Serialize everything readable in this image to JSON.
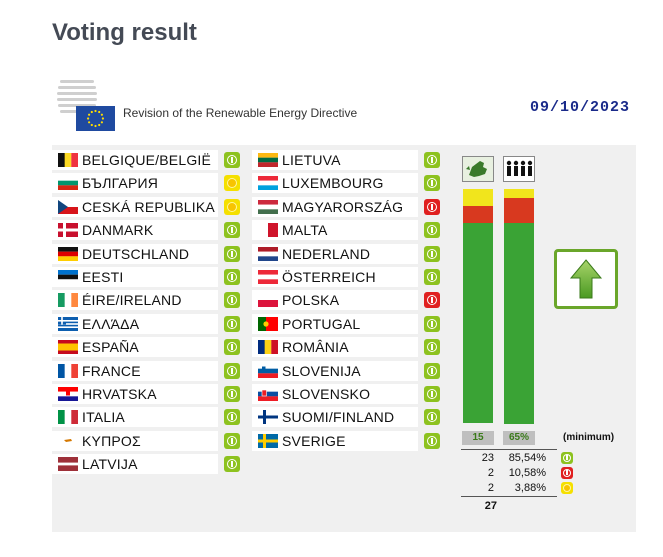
{
  "page": {
    "title": "Voting result"
  },
  "header": {
    "description": "Revision of the Renewable Energy Directive",
    "date": "09/10/2023"
  },
  "countries_left": [
    {
      "name": "BELGIQUE/BELGIË",
      "vote": "yes",
      "flag": "be"
    },
    {
      "name": "БЪЛГАРИЯ",
      "vote": "abs",
      "flag": "bg"
    },
    {
      "name": "CESKÁ REPUBLIKA",
      "vote": "abs",
      "flag": "cz"
    },
    {
      "name": "DANMARK",
      "vote": "yes",
      "flag": "dk"
    },
    {
      "name": "DEUTSCHLAND",
      "vote": "yes",
      "flag": "de"
    },
    {
      "name": "EESTI",
      "vote": "yes",
      "flag": "ee"
    },
    {
      "name": "ÉIRE/IRELAND",
      "vote": "yes",
      "flag": "ie"
    },
    {
      "name": "ΕΛΛΆΔΑ",
      "vote": "yes",
      "flag": "gr"
    },
    {
      "name": "ESPAÑA",
      "vote": "yes",
      "flag": "es"
    },
    {
      "name": "FRANCE",
      "vote": "yes",
      "flag": "fr"
    },
    {
      "name": "HRVATSKA",
      "vote": "yes",
      "flag": "hr"
    },
    {
      "name": "ITALIA",
      "vote": "yes",
      "flag": "it"
    },
    {
      "name": "ΚΥΠΡΟΣ",
      "vote": "yes",
      "flag": "cy"
    },
    {
      "name": "LATVIJA",
      "vote": "yes",
      "flag": "lv"
    }
  ],
  "countries_right": [
    {
      "name": "LIETUVA",
      "vote": "yes",
      "flag": "lt"
    },
    {
      "name": "LUXEMBOURG",
      "vote": "yes",
      "flag": "lu"
    },
    {
      "name": "MAGYARORSZÁG",
      "vote": "no",
      "flag": "hu"
    },
    {
      "name": "MALTA",
      "vote": "yes",
      "flag": "mt"
    },
    {
      "name": "NEDERLAND",
      "vote": "yes",
      "flag": "nl"
    },
    {
      "name": "ÖSTERREICH",
      "vote": "yes",
      "flag": "at"
    },
    {
      "name": "POLSKA",
      "vote": "no",
      "flag": "pl"
    },
    {
      "name": "PORTUGAL",
      "vote": "yes",
      "flag": "pt"
    },
    {
      "name": "ROMÂNIA",
      "vote": "yes",
      "flag": "ro"
    },
    {
      "name": "SLOVENIJA",
      "vote": "yes",
      "flag": "si"
    },
    {
      "name": "SLOVENSKO",
      "vote": "yes",
      "flag": "sk"
    },
    {
      "name": "SUOMI/FINLAND",
      "vote": "yes",
      "flag": "fi"
    },
    {
      "name": "SVERIGE",
      "vote": "yes",
      "flag": "se"
    }
  ],
  "thresholds": {
    "states_min": "15",
    "population_min": "65%",
    "minimum_label": "(minimum)"
  },
  "bars": {
    "states": {
      "yes_share": 0.852,
      "no_share": 0.074,
      "abs_share": 0.074
    },
    "population": {
      "yes_share": 0.8554,
      "no_share": 0.1058,
      "abs_share": 0.0388
    }
  },
  "tally": [
    {
      "count": "23",
      "pct": "85,54%",
      "vote": "yes"
    },
    {
      "count": "2",
      "pct": "10,58%",
      "vote": "no"
    },
    {
      "count": "2",
      "pct": "3,88%",
      "vote": "abs"
    }
  ],
  "total": "27",
  "colors": {
    "yes": "#3aa335",
    "no": "#d8391f",
    "abs": "#f1e51c",
    "icon_yes": "#8dc21f",
    "icon_no": "#e02020",
    "icon_abs": "#f5e000"
  },
  "icons": {
    "result": "arrow-up-icon",
    "states": "eu-map-icon",
    "population": "people-icon"
  }
}
